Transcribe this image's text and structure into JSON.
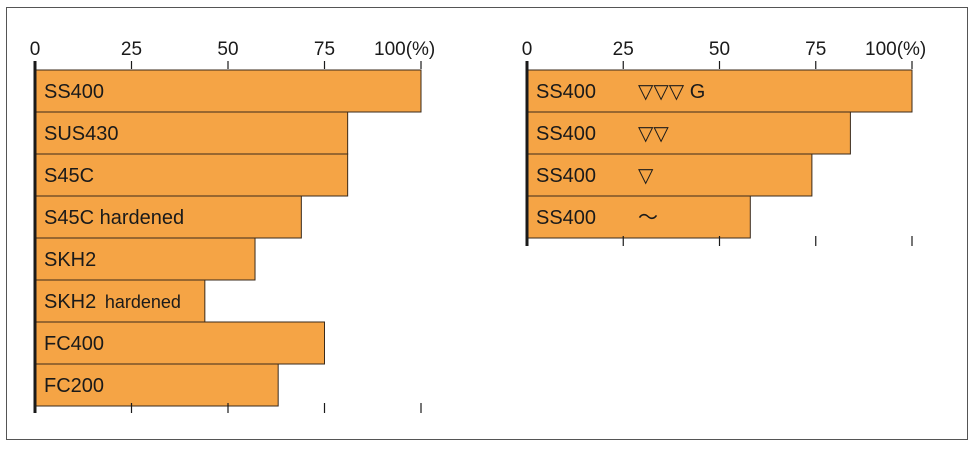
{
  "chart_data": [
    {
      "type": "bar",
      "orientation": "horizontal",
      "unit_label": "100(%)",
      "ticks": [
        "0",
        "25",
        "50",
        "75",
        "100"
      ],
      "xlim": [
        0,
        100
      ],
      "categories": [
        "SS400",
        "SUS430",
        "S45C",
        "S45C hardened",
        "SKH2",
        "SKH2 hardened",
        "FC400",
        "FC200"
      ],
      "values": [
        100,
        81,
        81,
        69,
        57,
        44,
        75,
        63
      ],
      "bar_color": "#F5A445"
    },
    {
      "type": "bar",
      "orientation": "horizontal",
      "unit_label": "100(%)",
      "ticks": [
        "0",
        "25",
        "50",
        "75",
        "100"
      ],
      "xlim": [
        0,
        100
      ],
      "categories": [
        "SS400",
        "SS400",
        "SS400",
        "SS400"
      ],
      "finish_marks": [
        "▽▽▽ G",
        "▽▽",
        "▽",
        "～"
      ],
      "values": [
        100,
        84,
        74,
        58
      ],
      "bar_color": "#F5A445"
    }
  ]
}
